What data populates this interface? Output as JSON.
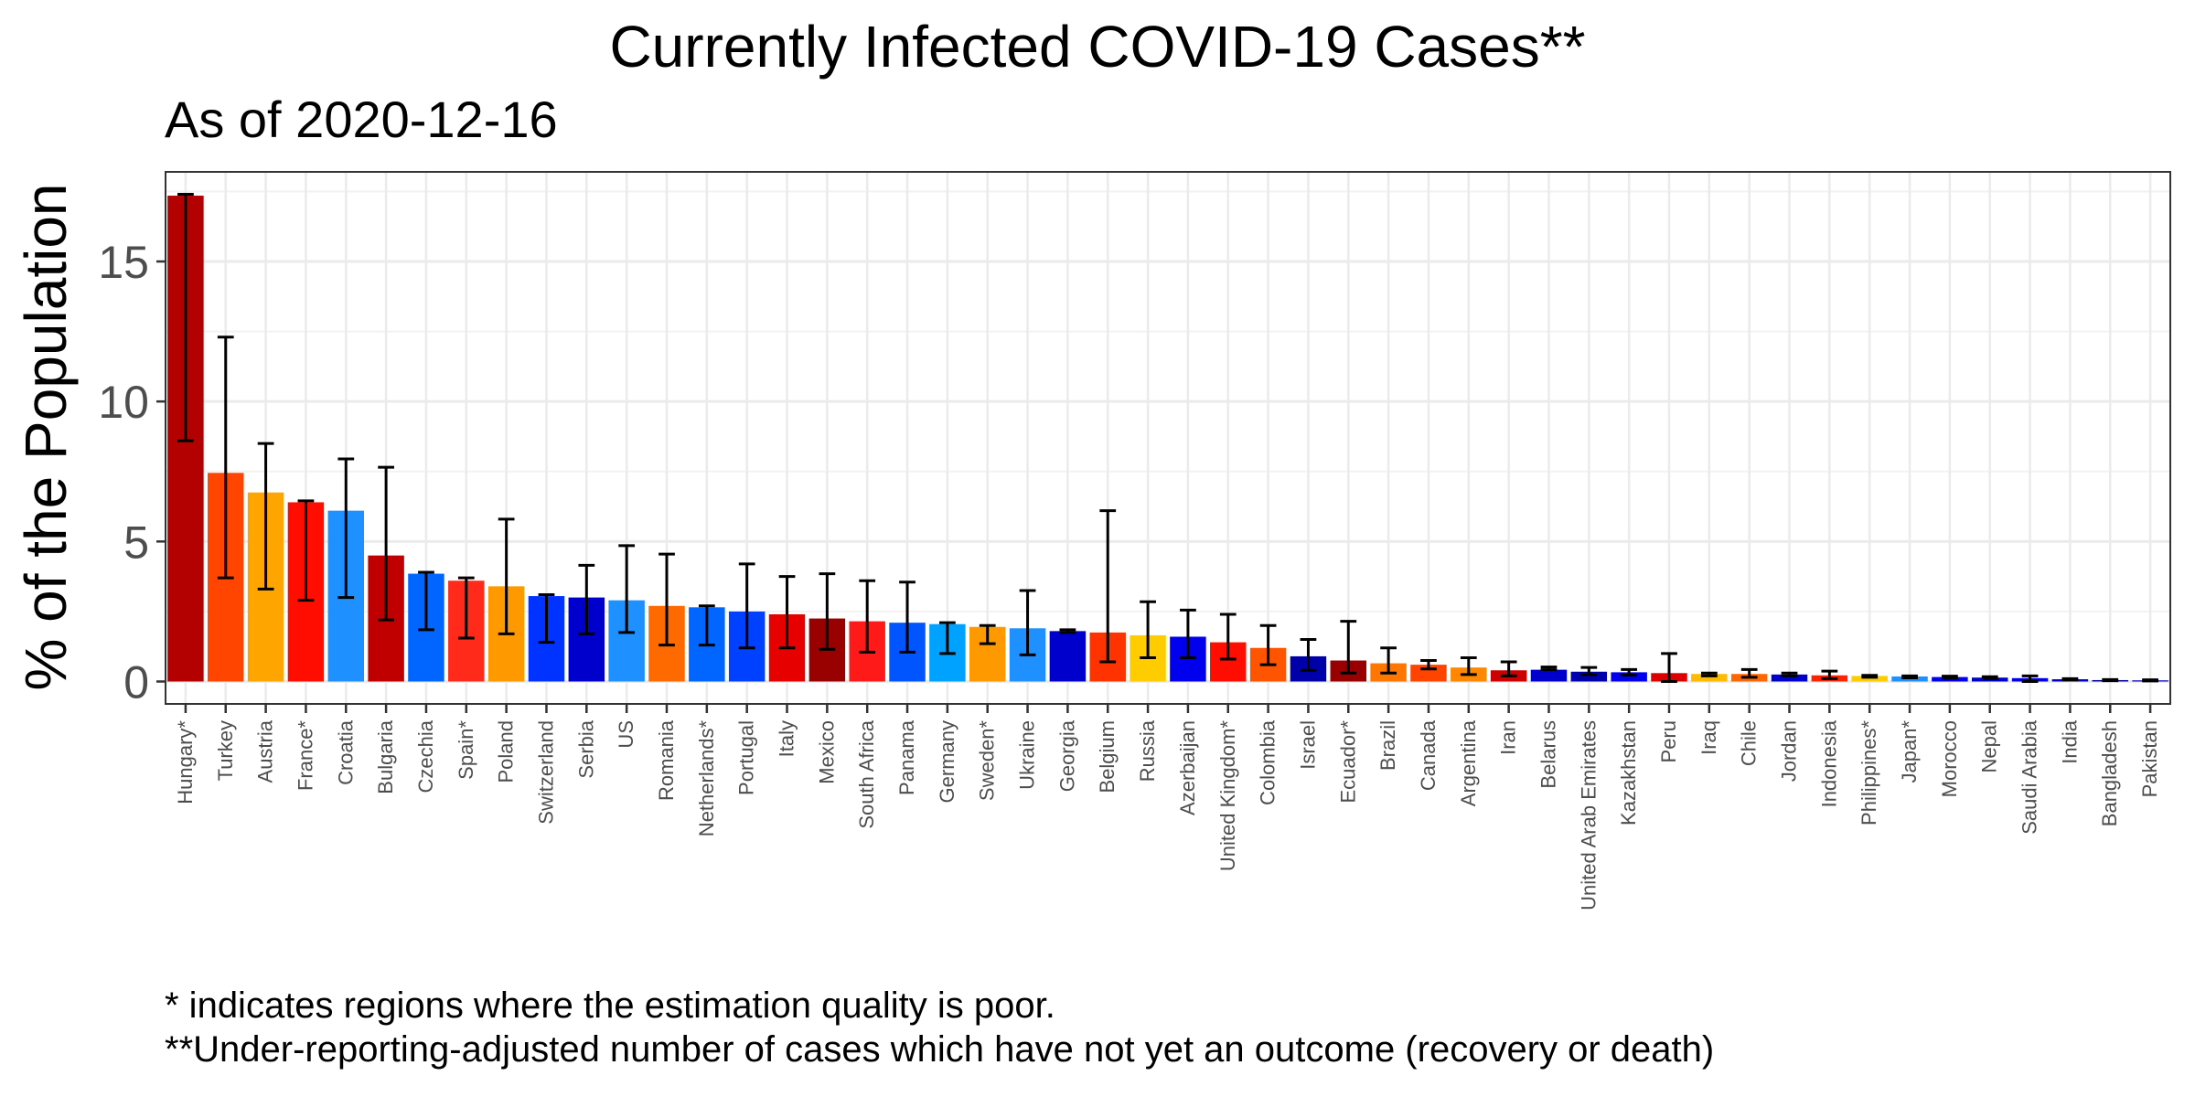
{
  "title": "Currently Infected COVID-19 Cases**",
  "subtitle": "As of 2020-12-16",
  "footnotes": [
    "* indicates regions where the estimation quality is poor.",
    "**Under-reporting-adjusted number of cases which have not yet an outcome (recovery or death)"
  ],
  "chart_data": {
    "type": "bar",
    "title": "Currently Infected COVID-19 Cases**",
    "subtitle": "As of 2020-12-16",
    "xlabel": "",
    "ylabel": "% of the Population",
    "ylim": [
      -0.8,
      18.2
    ],
    "yticks": [
      0,
      5,
      10,
      15
    ],
    "grid": true,
    "categories": [
      "Hungary*",
      "Turkey",
      "Austria",
      "France*",
      "Croatia",
      "Bulgaria",
      "Czechia",
      "Spain*",
      "Poland",
      "Switzerland",
      "Serbia",
      "US",
      "Romania",
      "Netherlands*",
      "Portugal",
      "Italy",
      "Mexico",
      "South Africa",
      "Panama",
      "Germany",
      "Sweden*",
      "Ukraine",
      "Georgia",
      "Belgium",
      "Russia",
      "Azerbaijan",
      "United Kingdom*",
      "Colombia",
      "Israel",
      "Ecuador*",
      "Brazil",
      "Canada",
      "Argentina",
      "Iran",
      "Belarus",
      "United Arab Emirates",
      "Kazakhstan",
      "Peru",
      "Iraq",
      "Chile",
      "Jordan",
      "Indonesia",
      "Philippines*",
      "Japan*",
      "Morocco",
      "Nepal",
      "Saudi Arabia",
      "India",
      "Bangladesh",
      "Pakistan"
    ],
    "values": [
      17.35,
      7.45,
      6.75,
      6.4,
      6.1,
      4.5,
      3.85,
      3.6,
      3.4,
      3.05,
      3.0,
      2.9,
      2.7,
      2.65,
      2.5,
      2.4,
      2.25,
      2.15,
      2.1,
      2.05,
      1.95,
      1.9,
      1.8,
      1.75,
      1.65,
      1.6,
      1.4,
      1.2,
      0.9,
      0.75,
      0.65,
      0.6,
      0.5,
      0.4,
      0.42,
      0.35,
      0.33,
      0.3,
      0.27,
      0.27,
      0.25,
      0.22,
      0.2,
      0.18,
      0.16,
      0.14,
      0.12,
      0.08,
      0.05,
      0.04
    ],
    "error_low": [
      8.6,
      3.7,
      3.3,
      2.9,
      3.0,
      2.2,
      1.85,
      1.55,
      1.7,
      1.4,
      1.7,
      1.75,
      1.3,
      1.3,
      1.2,
      1.2,
      1.15,
      1.05,
      1.05,
      1.0,
      1.35,
      0.95,
      1.75,
      0.7,
      0.85,
      0.85,
      0.8,
      0.6,
      0.4,
      0.3,
      0.3,
      0.45,
      0.25,
      0.2,
      0.42,
      0.25,
      0.23,
      0.0,
      0.2,
      0.15,
      0.2,
      0.1,
      0.15,
      0.13,
      0.12,
      0.1,
      0.0,
      0.05,
      0.03,
      0.02
    ],
    "error_high": [
      17.4,
      12.3,
      8.5,
      6.45,
      7.95,
      7.65,
      3.9,
      3.7,
      5.8,
      3.1,
      4.15,
      4.85,
      4.55,
      2.7,
      4.2,
      3.75,
      3.85,
      3.6,
      3.55,
      2.1,
      2.0,
      3.25,
      1.85,
      6.1,
      2.85,
      2.55,
      2.4,
      2.0,
      1.5,
      2.15,
      1.2,
      0.75,
      0.85,
      0.7,
      0.52,
      0.5,
      0.43,
      1.0,
      0.3,
      0.43,
      0.3,
      0.37,
      0.22,
      0.2,
      0.19,
      0.17,
      0.2,
      0.1,
      0.07,
      0.06
    ],
    "colors": [
      "#B30000",
      "#FF4500",
      "#FFA500",
      "#FF0D00",
      "#1E90FF",
      "#C00000",
      "#0066FF",
      "#FF2A1A",
      "#FF9900",
      "#0033FF",
      "#0000CC",
      "#1E90FF",
      "#FF6A00",
      "#0066FF",
      "#0040FF",
      "#E60000",
      "#990000",
      "#FF1A1A",
      "#0055FF",
      "#00A2FF",
      "#FF9900",
      "#1E90FF",
      "#0000CC",
      "#FF3300",
      "#FFCC00",
      "#0000EE",
      "#FF0D00",
      "#FF5500",
      "#0000AA",
      "#990000",
      "#FF7700",
      "#FF4400",
      "#FF8800",
      "#CC0000",
      "#0000CC",
      "#0000AA",
      "#0000EE",
      "#DD0000",
      "#FFBB00",
      "#FF6600",
      "#0000CC",
      "#FF2200",
      "#FFCC00",
      "#1E90FF",
      "#0000EE",
      "#0000CC",
      "#0000EE",
      "#0000CC",
      "#0000AA",
      "#0000CC"
    ]
  }
}
